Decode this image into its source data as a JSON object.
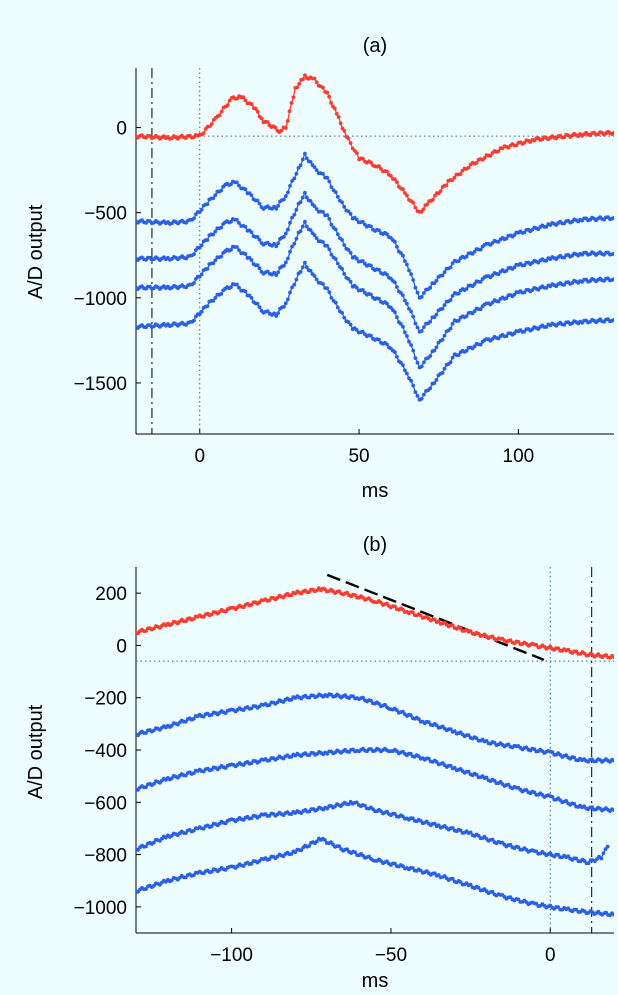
{
  "chart_data": [
    {
      "type": "line",
      "title": "(a)",
      "xlabel": "ms",
      "ylabel": "A/D output",
      "xlim": [
        -20,
        130
      ],
      "ylim": [
        -1800,
        350
      ],
      "xticks": [
        0,
        50,
        100
      ],
      "yticks": [
        0,
        -500,
        -1000,
        -1500
      ],
      "tick_labels_x": [
        "0",
        "50",
        "100"
      ],
      "tick_labels_y": [
        "0",
        "−500",
        "−1000",
        "−1500"
      ],
      "grid": false,
      "markers": "dots",
      "reference_lines": [
        {
          "orientation": "horizontal",
          "value": -50,
          "style": "dotted"
        },
        {
          "orientation": "vertical",
          "value": 0,
          "style": "dotted"
        },
        {
          "orientation": "vertical",
          "value": -15,
          "style": "dash-dot"
        }
      ],
      "series": [
        {
          "color": "#ff3b30",
          "points": [
            [
              -20,
              -50
            ],
            [
              -10,
              -60
            ],
            [
              0,
              -50
            ],
            [
              5,
              50
            ],
            [
              10,
              170
            ],
            [
              13,
              180
            ],
            [
              17,
              120
            ],
            [
              20,
              40
            ],
            [
              25,
              -20
            ],
            [
              27,
              0
            ],
            [
              30,
              230
            ],
            [
              33,
              300
            ],
            [
              36,
              280
            ],
            [
              40,
              200
            ],
            [
              43,
              80
            ],
            [
              46,
              -50
            ],
            [
              50,
              -180
            ],
            [
              55,
              -220
            ],
            [
              60,
              -280
            ],
            [
              65,
              -400
            ],
            [
              69,
              -500
            ],
            [
              72,
              -440
            ],
            [
              78,
              -320
            ],
            [
              85,
              -220
            ],
            [
              95,
              -120
            ],
            [
              105,
              -70
            ],
            [
              120,
              -40
            ],
            [
              130,
              -30
            ]
          ]
        },
        {
          "color": "#2a5fe8",
          "points": [
            [
              -20,
              -550
            ],
            [
              -10,
              -560
            ],
            [
              -3,
              -550
            ],
            [
              3,
              -430
            ],
            [
              8,
              -340
            ],
            [
              11,
              -320
            ],
            [
              15,
              -380
            ],
            [
              20,
              -470
            ],
            [
              24,
              -470
            ],
            [
              27,
              -400
            ],
            [
              31,
              -240
            ],
            [
              33,
              -160
            ],
            [
              36,
              -240
            ],
            [
              40,
              -300
            ],
            [
              44,
              -430
            ],
            [
              48,
              -530
            ],
            [
              55,
              -600
            ],
            [
              60,
              -640
            ],
            [
              65,
              -800
            ],
            [
              69,
              -1000
            ],
            [
              73,
              -920
            ],
            [
              80,
              -790
            ],
            [
              90,
              -690
            ],
            [
              100,
              -620
            ],
            [
              110,
              -570
            ],
            [
              120,
              -540
            ],
            [
              130,
              -530
            ]
          ]
        },
        {
          "color": "#2a5fe8",
          "points": [
            [
              -20,
              -770
            ],
            [
              -10,
              -770
            ],
            [
              -3,
              -760
            ],
            [
              3,
              -640
            ],
            [
              8,
              -560
            ],
            [
              11,
              -540
            ],
            [
              15,
              -600
            ],
            [
              20,
              -680
            ],
            [
              24,
              -690
            ],
            [
              27,
              -620
            ],
            [
              31,
              -450
            ],
            [
              33,
              -390
            ],
            [
              36,
              -470
            ],
            [
              40,
              -520
            ],
            [
              44,
              -650
            ],
            [
              48,
              -760
            ],
            [
              55,
              -830
            ],
            [
              60,
              -880
            ],
            [
              65,
              -1030
            ],
            [
              69,
              -1200
            ],
            [
              73,
              -1120
            ],
            [
              80,
              -980
            ],
            [
              90,
              -880
            ],
            [
              100,
              -810
            ],
            [
              110,
              -770
            ],
            [
              120,
              -740
            ],
            [
              130,
              -740
            ]
          ]
        },
        {
          "color": "#2a5fe8",
          "points": [
            [
              -20,
              -940
            ],
            [
              -10,
              -940
            ],
            [
              -3,
              -930
            ],
            [
              3,
              -810
            ],
            [
              8,
              -730
            ],
            [
              11,
              -700
            ],
            [
              15,
              -760
            ],
            [
              20,
              -850
            ],
            [
              24,
              -860
            ],
            [
              27,
              -790
            ],
            [
              31,
              -620
            ],
            [
              33,
              -560
            ],
            [
              36,
              -640
            ],
            [
              40,
              -700
            ],
            [
              44,
              -820
            ],
            [
              48,
              -930
            ],
            [
              55,
              -1000
            ],
            [
              60,
              -1050
            ],
            [
              65,
              -1220
            ],
            [
              69,
              -1410
            ],
            [
              73,
              -1320
            ],
            [
              80,
              -1140
            ],
            [
              90,
              -1040
            ],
            [
              100,
              -970
            ],
            [
              110,
              -930
            ],
            [
              120,
              -900
            ],
            [
              130,
              -890
            ]
          ]
        },
        {
          "color": "#2a5fe8",
          "points": [
            [
              -20,
              -1170
            ],
            [
              -10,
              -1160
            ],
            [
              -3,
              -1150
            ],
            [
              3,
              -1030
            ],
            [
              8,
              -950
            ],
            [
              11,
              -920
            ],
            [
              15,
              -980
            ],
            [
              20,
              -1080
            ],
            [
              24,
              -1100
            ],
            [
              27,
              -1030
            ],
            [
              31,
              -860
            ],
            [
              33,
              -800
            ],
            [
              36,
              -880
            ],
            [
              40,
              -950
            ],
            [
              44,
              -1080
            ],
            [
              48,
              -1180
            ],
            [
              55,
              -1240
            ],
            [
              60,
              -1290
            ],
            [
              65,
              -1440
            ],
            [
              69,
              -1600
            ],
            [
              73,
              -1510
            ],
            [
              80,
              -1340
            ],
            [
              90,
              -1250
            ],
            [
              100,
              -1200
            ],
            [
              110,
              -1160
            ],
            [
              120,
              -1140
            ],
            [
              130,
              -1130
            ]
          ]
        }
      ]
    },
    {
      "type": "line",
      "title": "(b)",
      "xlabel": "ms",
      "ylabel": "A/D output",
      "xlim": [
        -130,
        20
      ],
      "ylim": [
        -1100,
        300
      ],
      "xticks": [
        -100,
        -50,
        0
      ],
      "yticks": [
        200,
        0,
        -200,
        -400,
        -600,
        -800,
        -1000
      ],
      "tick_labels_x": [
        "−100",
        "−50",
        "0"
      ],
      "tick_labels_y": [
        "200",
        "0",
        "−200",
        "−400",
        "−600",
        "−800",
        "−1000"
      ],
      "grid": false,
      "markers": "dots",
      "reference_lines": [
        {
          "orientation": "horizontal",
          "value": -60,
          "style": "dotted"
        },
        {
          "orientation": "vertical",
          "value": 0,
          "style": "dotted"
        },
        {
          "orientation": "vertical",
          "value": 13,
          "style": "dash-dot"
        },
        {
          "orientation": "segment",
          "from": [
            -70,
            270
          ],
          "to": [
            -2,
            -55
          ],
          "style": "dashed",
          "color": "#000000"
        }
      ],
      "series": [
        {
          "color": "#ff3b30",
          "points": [
            [
              -130,
              50
            ],
            [
              -120,
              80
            ],
            [
              -110,
              110
            ],
            [
              -100,
              140
            ],
            [
              -90,
              170
            ],
            [
              -80,
              200
            ],
            [
              -72,
              215
            ],
            [
              -65,
              200
            ],
            [
              -55,
              170
            ],
            [
              -45,
              130
            ],
            [
              -35,
              90
            ],
            [
              -25,
              50
            ],
            [
              -15,
              20
            ],
            [
              -5,
              0
            ],
            [
              5,
              -20
            ],
            [
              12,
              -35
            ],
            [
              20,
              -45
            ]
          ]
        },
        {
          "color": "#2a5fe8",
          "points": [
            [
              -130,
              -340
            ],
            [
              -120,
              -310
            ],
            [
              -110,
              -270
            ],
            [
              -100,
              -250
            ],
            [
              -90,
              -230
            ],
            [
              -80,
              -200
            ],
            [
              -70,
              -190
            ],
            [
              -60,
              -200
            ],
            [
              -50,
              -240
            ],
            [
              -40,
              -290
            ],
            [
              -30,
              -330
            ],
            [
              -20,
              -370
            ],
            [
              -10,
              -390
            ],
            [
              0,
              -410
            ],
            [
              10,
              -440
            ],
            [
              20,
              -440
            ]
          ]
        },
        {
          "color": "#2a5fe8",
          "points": [
            [
              -130,
              -550
            ],
            [
              -120,
              -510
            ],
            [
              -110,
              -480
            ],
            [
              -100,
              -460
            ],
            [
              -90,
              -440
            ],
            [
              -80,
              -420
            ],
            [
              -70,
              -410
            ],
            [
              -60,
              -400
            ],
            [
              -50,
              -400
            ],
            [
              -40,
              -430
            ],
            [
              -30,
              -470
            ],
            [
              -20,
              -510
            ],
            [
              -10,
              -550
            ],
            [
              0,
              -580
            ],
            [
              10,
              -620
            ],
            [
              20,
              -630
            ]
          ]
        },
        {
          "color": "#2a5fe8",
          "points": [
            [
              -130,
              -780
            ],
            [
              -120,
              -730
            ],
            [
              -110,
              -700
            ],
            [
              -100,
              -670
            ],
            [
              -90,
              -650
            ],
            [
              -80,
              -640
            ],
            [
              -70,
              -620
            ],
            [
              -62,
              -600
            ],
            [
              -55,
              -630
            ],
            [
              -45,
              -660
            ],
            [
              -35,
              -690
            ],
            [
              -25,
              -720
            ],
            [
              -15,
              -760
            ],
            [
              -5,
              -790
            ],
            [
              5,
              -810
            ],
            [
              12,
              -830
            ],
            [
              16,
              -810
            ],
            [
              18,
              -770
            ]
          ]
        },
        {
          "color": "#2a5fe8",
          "points": [
            [
              -130,
              -940
            ],
            [
              -120,
              -900
            ],
            [
              -110,
              -870
            ],
            [
              -100,
              -850
            ],
            [
              -90,
              -820
            ],
            [
              -80,
              -790
            ],
            [
              -72,
              -740
            ],
            [
              -65,
              -780
            ],
            [
              -55,
              -820
            ],
            [
              -45,
              -850
            ],
            [
              -35,
              -880
            ],
            [
              -25,
              -920
            ],
            [
              -15,
              -960
            ],
            [
              -5,
              -990
            ],
            [
              5,
              -1010
            ],
            [
              12,
              -1020
            ],
            [
              20,
              -1030
            ]
          ]
        }
      ]
    }
  ]
}
